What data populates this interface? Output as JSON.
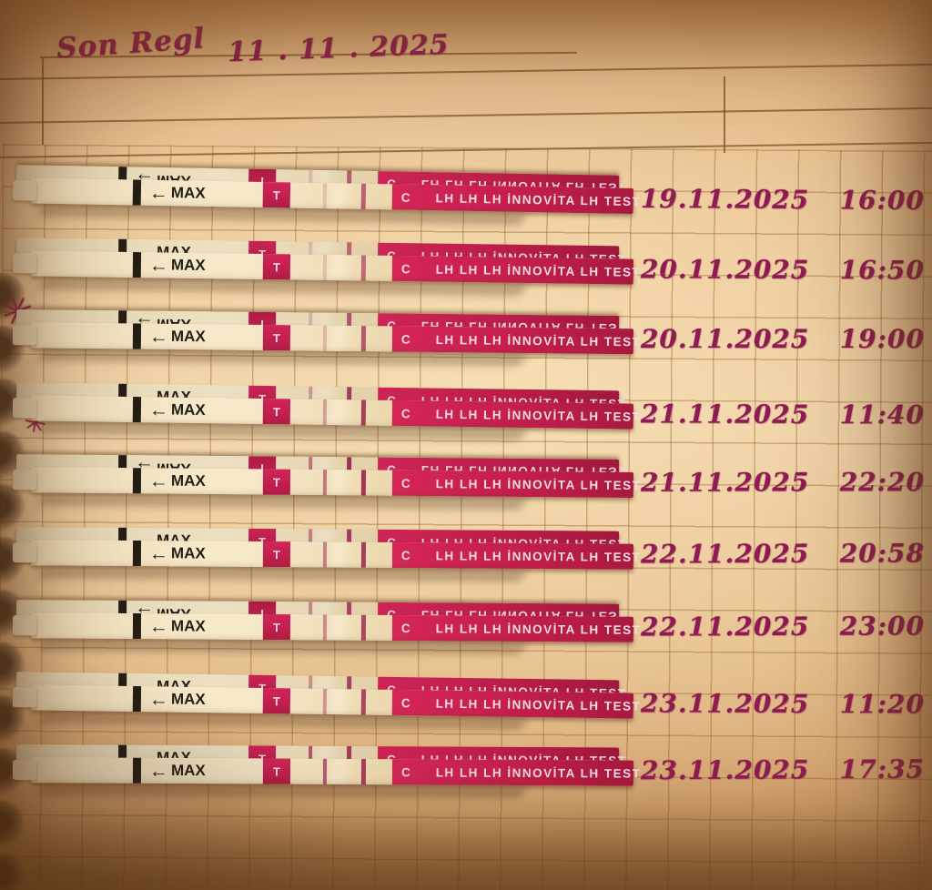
{
  "header": {
    "label": "Son Regl",
    "date": "11 . 11 . 2025"
  },
  "strip": {
    "max_label": "MAX",
    "arrow_glyph": "←",
    "t_label": "T",
    "c_label": "C",
    "brand_label": "LH LH LH İNNOVİTA LH TEST"
  },
  "doodles": {
    "star_glyph": "✳"
  },
  "entries": [
    {
      "date": "19.11.2025",
      "time": "16:00",
      "test_line": 0.18,
      "control_line": 0.65
    },
    {
      "date": "20.11.2025",
      "time": "16:50",
      "test_line": 0.18,
      "control_line": 0.6
    },
    {
      "date": "20.11.2025",
      "time": "19:00",
      "test_line": 0.22,
      "control_line": 0.7
    },
    {
      "date": "21.11.2025",
      "time": "11:40",
      "test_line": 0.35,
      "control_line": 0.85
    },
    {
      "date": "21.11.2025",
      "time": "22:20",
      "test_line": 0.55,
      "control_line": 0.9
    },
    {
      "date": "22.11.2025",
      "time": "20:58",
      "test_line": 0.5,
      "control_line": 0.85
    },
    {
      "date": "22.11.2025",
      "time": "23:00",
      "test_line": 0.45,
      "control_line": 0.8
    },
    {
      "date": "23.11.2025",
      "time": "11:20",
      "test_line": 0.4,
      "control_line": 0.8
    },
    {
      "date": "23.11.2025",
      "time": "17:35",
      "test_line": 0.7,
      "control_line": 0.85
    }
  ],
  "colors": {
    "paper": "#e9c392",
    "ink": "#8e1c52",
    "strip_pink": "#c21e4c",
    "strip_cream": "#f2e3c0",
    "grid_line": "#945e2c"
  }
}
